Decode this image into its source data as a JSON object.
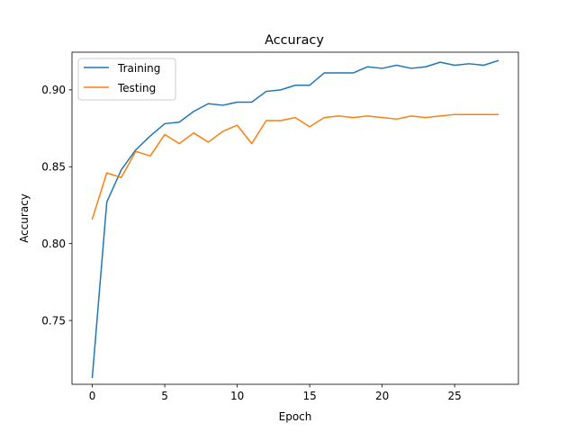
{
  "chart_data": {
    "type": "line",
    "title": "Accuracy",
    "xlabel": "Epoch",
    "ylabel": "Accuracy",
    "xlim": [
      -1.4,
      29.4
    ],
    "ylim": [
      0.7085,
      0.9245
    ],
    "xticks": [
      0,
      5,
      10,
      15,
      20,
      25
    ],
    "xtick_labels": [
      "0",
      "5",
      "10",
      "15",
      "20",
      "25"
    ],
    "yticks": [
      0.75,
      0.8,
      0.85,
      0.9
    ],
    "ytick_labels": [
      "0.75",
      "0.80",
      "0.85",
      "0.90"
    ],
    "grid": false,
    "legend_position": "top-left",
    "x": [
      0,
      1,
      2,
      3,
      4,
      5,
      6,
      7,
      8,
      9,
      10,
      11,
      12,
      13,
      14,
      15,
      16,
      17,
      18,
      19,
      20,
      21,
      22,
      23,
      24,
      25,
      26,
      27,
      28
    ],
    "series": [
      {
        "name": "Training",
        "color": "#1f77b4",
        "values": [
          0.713,
          0.827,
          0.848,
          0.861,
          0.87,
          0.878,
          0.879,
          0.886,
          0.891,
          0.89,
          0.892,
          0.892,
          0.899,
          0.9,
          0.903,
          0.903,
          0.911,
          0.911,
          0.911,
          0.915,
          0.914,
          0.916,
          0.914,
          0.915,
          0.918,
          0.916,
          0.917,
          0.916,
          0.919
        ]
      },
      {
        "name": "Testing",
        "color": "#ff7f0e",
        "values": [
          0.816,
          0.846,
          0.843,
          0.86,
          0.857,
          0.871,
          0.865,
          0.872,
          0.866,
          0.873,
          0.877,
          0.865,
          0.88,
          0.88,
          0.882,
          0.876,
          0.882,
          0.883,
          0.882,
          0.883,
          0.882,
          0.881,
          0.883,
          0.882,
          0.883,
          0.884,
          0.884,
          0.884,
          0.884
        ]
      }
    ]
  }
}
